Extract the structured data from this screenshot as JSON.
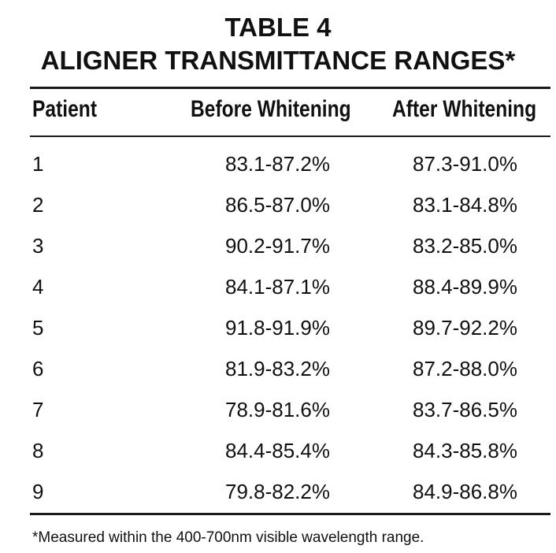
{
  "title": {
    "line1": "TABLE 4",
    "line2": "ALIGNER TRANSMITTANCE RANGES*"
  },
  "table": {
    "headers": [
      "Patient",
      "Before Whitening",
      "After Whitening"
    ],
    "rows": [
      {
        "patient": "1",
        "before": "83.1-87.2%",
        "after": "87.3-91.0%"
      },
      {
        "patient": "2",
        "before": "86.5-87.0%",
        "after": "83.1-84.8%"
      },
      {
        "patient": "3",
        "before": "90.2-91.7%",
        "after": "83.2-85.0%"
      },
      {
        "patient": "4",
        "before": "84.1-87.1%",
        "after": "88.4-89.9%"
      },
      {
        "patient": "5",
        "before": "91.8-91.9%",
        "after": "89.7-92.2%"
      },
      {
        "patient": "6",
        "before": "81.9-83.2%",
        "after": "87.2-88.0%"
      },
      {
        "patient": "7",
        "before": "78.9-81.6%",
        "after": "83.7-86.5%"
      },
      {
        "patient": "8",
        "before": "84.4-85.4%",
        "after": "84.3-85.8%"
      },
      {
        "patient": "9",
        "before": "79.8-82.2%",
        "after": "84.9-86.8%"
      }
    ]
  },
  "footnote": "*Measured within the 400-700nm visible wavelength range."
}
